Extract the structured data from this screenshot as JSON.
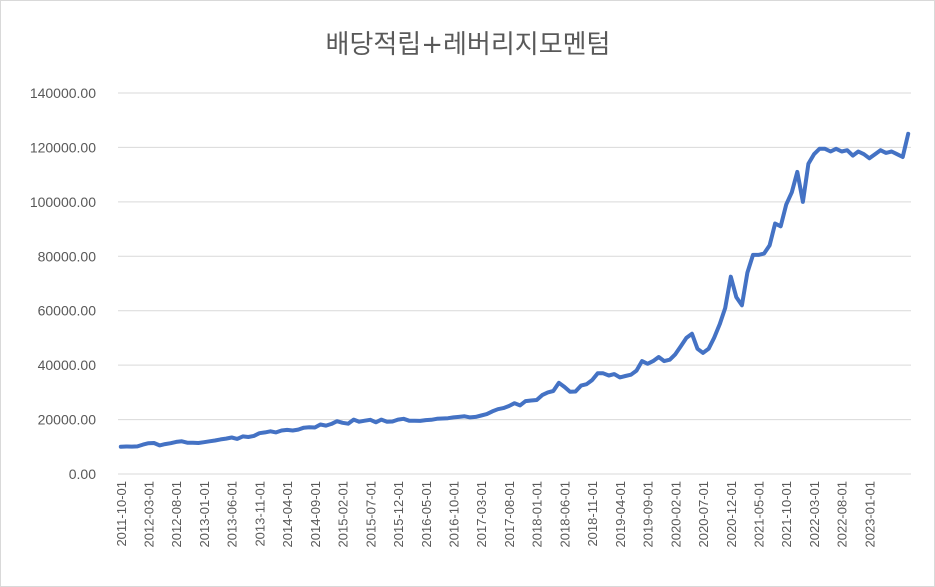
{
  "chart_data": {
    "type": "line",
    "title": "배당적립+레버리지모멘텀",
    "xlabel": "",
    "ylabel": "",
    "ylim": [
      0,
      140000
    ],
    "grid": true,
    "legend": "none",
    "line_color": "#4472C4",
    "grid_color": "#d9d9d9",
    "yticks": [
      "0.00",
      "20000.00",
      "40000.00",
      "60000.00",
      "80000.00",
      "100000.00",
      "120000.00",
      "140000.00"
    ],
    "xticks": [
      "2011-10-01",
      "2012-03-01",
      "2012-08-01",
      "2013-01-01",
      "2013-06-01",
      "2013-11-01",
      "2014-04-01",
      "2014-09-01",
      "2015-02-01",
      "2015-07-01",
      "2015-12-01",
      "2016-05-01",
      "2016-10-01",
      "2017-03-01",
      "2017-08-01",
      "2018-01-01",
      "2018-06-01",
      "2018-11-01",
      "2019-04-01",
      "2019-09-01",
      "2020-02-01",
      "2020-07-01",
      "2020-12-01",
      "2021-05-01",
      "2021-10-01",
      "2022-03-01",
      "2022-08-01",
      "2023-01-01"
    ],
    "series": [
      {
        "x_start": "2011-10",
        "values": [
          10000,
          10100,
          10050,
          10150,
          10800,
          11300,
          11400,
          10500,
          11000,
          11300,
          11800,
          12000,
          11500,
          11500,
          11400,
          11700,
          12000,
          12300,
          12700,
          13000,
          13400,
          12900,
          13800,
          13600,
          14000,
          15000,
          15300,
          15700,
          15300,
          16000,
          16200,
          16000,
          16300,
          17000,
          17200,
          17100,
          18200,
          17800,
          18400,
          19400,
          18800,
          18500,
          20000,
          19200,
          19600,
          19900,
          19000,
          20000,
          19200,
          19300,
          20000,
          20300,
          19600,
          19600,
          19500,
          19800,
          19900,
          20300,
          20400,
          20500,
          20800,
          21000,
          21200,
          20800,
          21000,
          21500,
          22000,
          23000,
          23800,
          24200,
          25000,
          26000,
          25200,
          26800,
          27000,
          27200,
          29000,
          30000,
          30500,
          33500,
          32000,
          30200,
          30300,
          32500,
          33000,
          34500,
          37000,
          37000,
          36200,
          36700,
          35500,
          36000,
          36500,
          38000,
          41500,
          40500,
          41500,
          43000,
          41500,
          42000,
          44000,
          47000,
          50000,
          51500,
          46000,
          44500,
          46000,
          50000,
          55000,
          61000,
          72500,
          65000,
          62000,
          74000,
          80500,
          80500,
          81000,
          84000,
          92000,
          91000,
          99000,
          103500,
          111000,
          100000,
          114000,
          117500,
          119500,
          119500,
          118500,
          119500,
          118500,
          119000,
          117000,
          118500,
          117500,
          116000,
          117500,
          119000,
          118000,
          118500,
          117500,
          116500,
          125000
        ]
      }
    ]
  }
}
